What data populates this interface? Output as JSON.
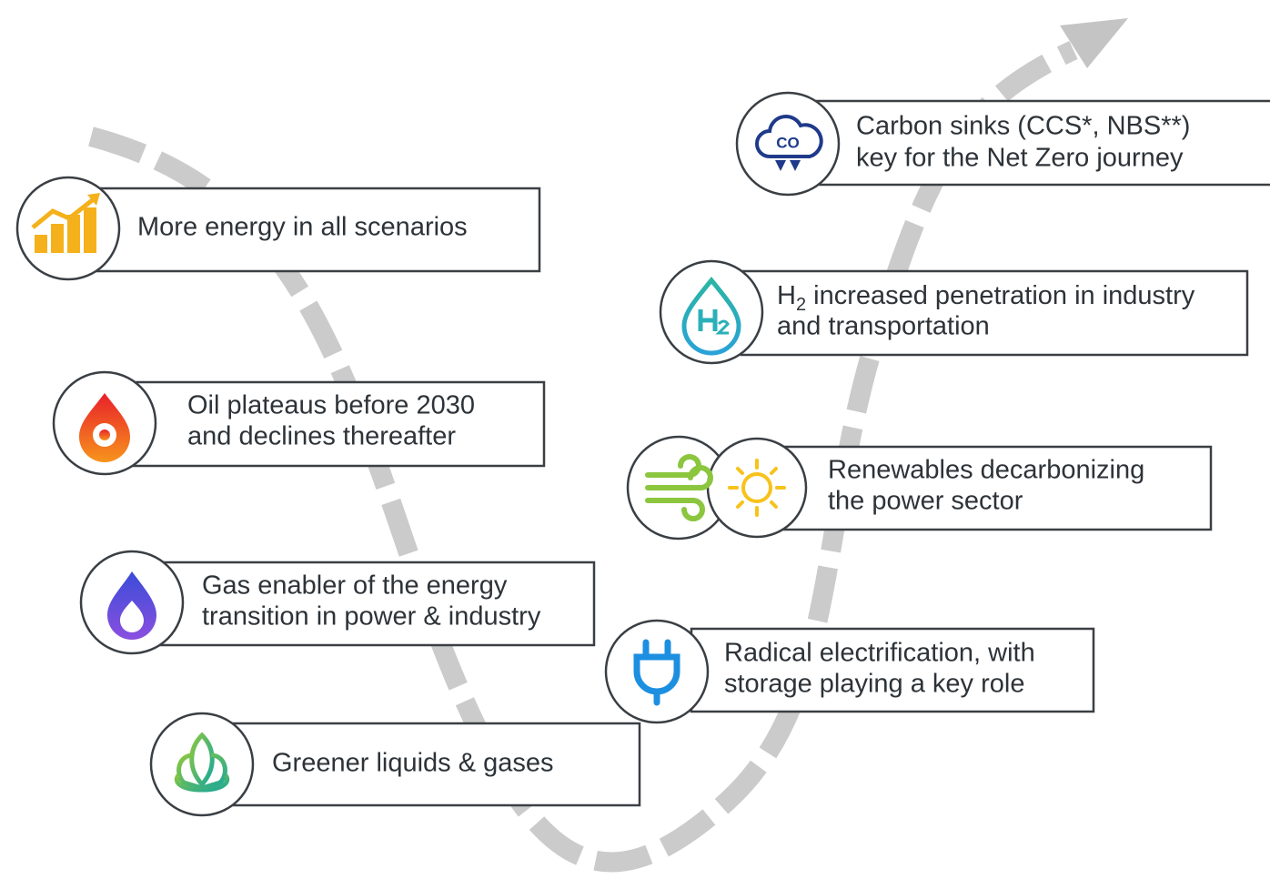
{
  "items": [
    {
      "lines": [
        "More energy in all scenarios"
      ]
    },
    {
      "lines": [
        "Oil plateaus before 2030",
        "and declines thereafter"
      ]
    },
    {
      "lines": [
        "Gas enabler of the energy",
        "transition in power & industry"
      ]
    },
    {
      "lines": [
        "Greener liquids & gases"
      ]
    },
    {
      "lines": [
        "Radical electrification, with",
        "storage playing a key role"
      ]
    },
    {
      "lines": [
        "Renewables decarbonizing",
        "the power sector"
      ]
    },
    {
      "lines": [
        {
          "base": "H",
          "subscript": "2",
          "rest": " increased penetration in industry"
        },
        "and transportation"
      ]
    },
    {
      "lines": [
        "Carbon sinks (CCS*, NBS**)",
        "key for the Net Zero journey"
      ]
    }
  ]
}
